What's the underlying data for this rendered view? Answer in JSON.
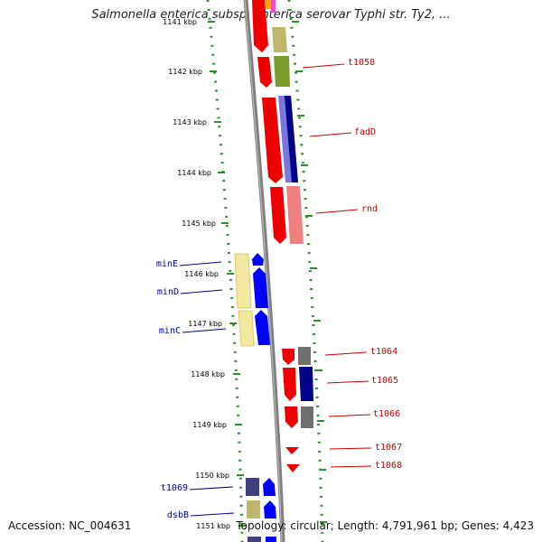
{
  "title": "Salmonella enterica subsp. enterica serovar Typhi str. Ty2, ...",
  "footer": {
    "accession": "Accession: NC_004631",
    "topology": "Topology: circular; Length: 4,791,961 bp; Genes: 4,423"
  },
  "ruler": {
    "unit": "kbp",
    "ticks": [
      {
        "label": "1141 kbp"
      },
      {
        "label": "1142 kbp"
      },
      {
        "label": "1143 kbp"
      },
      {
        "label": "1144 kbp"
      },
      {
        "label": "1145 kbp"
      },
      {
        "label": "1146 kbp"
      },
      {
        "label": "1147 kbp"
      },
      {
        "label": "1148 kbp"
      },
      {
        "label": "1149 kbp"
      },
      {
        "label": "1150 kbp"
      },
      {
        "label": "1151 kbp"
      }
    ]
  },
  "colors": {
    "forward_label": "#cc0000",
    "reverse_label": "#000099",
    "ruler_dots": "#2f8f2f",
    "backbone": "#808080",
    "red": "#ee0000",
    "blue": "#0000ff",
    "navy": "#000088",
    "olive": "#7a9a2a",
    "khaki": "#bdb76b",
    "pink": "#f08080",
    "yellow": "#f2e9a0",
    "gray": "#707070",
    "slate": "#404080",
    "magenta": "#ff44cc",
    "orange": "#ffa500"
  },
  "gene_labels": [
    {
      "name": "t1058",
      "strand": "forward"
    },
    {
      "name": "fadD",
      "strand": "forward"
    },
    {
      "name": "rnd",
      "strand": "forward"
    },
    {
      "name": "t1064",
      "strand": "forward"
    },
    {
      "name": "t1065",
      "strand": "forward"
    },
    {
      "name": "t1066",
      "strand": "forward"
    },
    {
      "name": "t1067",
      "strand": "forward"
    },
    {
      "name": "t1068",
      "strand": "forward"
    },
    {
      "name": "minE",
      "strand": "reverse"
    },
    {
      "name": "minD",
      "strand": "reverse"
    },
    {
      "name": "minC",
      "strand": "reverse"
    },
    {
      "name": "t1069",
      "strand": "reverse"
    },
    {
      "name": "dsbB",
      "strand": "reverse"
    }
  ]
}
